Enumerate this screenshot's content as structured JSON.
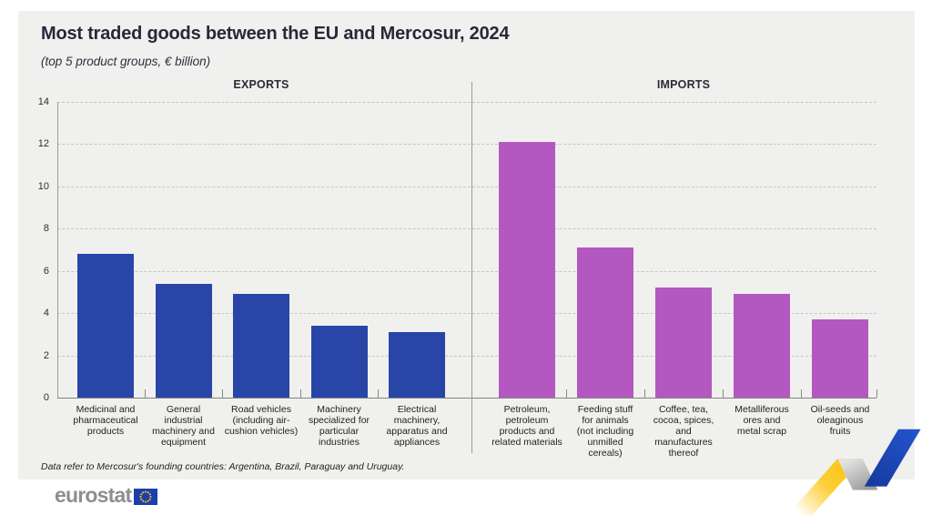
{
  "chart_data": {
    "type": "bar",
    "title": "Most traded goods between the EU and Mercosur, 2024",
    "subtitle": "(top 5 product groups, € billion)",
    "unit": "€ billion",
    "ylim": [
      0,
      14
    ],
    "yticks": [
      0,
      2,
      4,
      6,
      8,
      10,
      12,
      14
    ],
    "grid": "horizontal-dashed",
    "legend_position": "none",
    "panels": [
      {
        "label": "EXPORTS",
        "bar_color": "#2845a7",
        "categories": [
          "Medicinal and pharmaceutical products",
          "General industrial machinery and equipment",
          "Road vehicles (including air-cushion vehicles)",
          "Machinery specialized for particular industries",
          "Electrical machinery, apparatus and appliances"
        ],
        "category_lines": [
          [
            "Medicinal and",
            "pharmaceutical",
            "products"
          ],
          [
            "General",
            "industrial",
            "machinery and",
            "equipment"
          ],
          [
            "Road vehicles",
            "(including air-",
            "cushion vehicles)"
          ],
          [
            "Machinery",
            "specialized for",
            "particular",
            "industries"
          ],
          [
            "Electrical",
            "machinery,",
            "apparatus and",
            "appliances"
          ]
        ],
        "values": [
          6.8,
          5.4,
          4.9,
          3.4,
          3.1
        ]
      },
      {
        "label": "IMPORTS",
        "bar_color": "#b458c1",
        "categories": [
          "Petroleum, petroleum products and related materials",
          "Feeding stuff for animals (not including unmilled cereals)",
          "Coffee, tea, cocoa, spices, and manufactures thereof",
          "Metalliferous ores and metal scrap",
          "Oil-seeds and oleaginous fruits"
        ],
        "category_lines": [
          [
            "Petroleum,",
            "petroleum",
            "products and",
            "related materials"
          ],
          [
            "Feeding stuff",
            "for animals",
            "(not including",
            "unmilled",
            "cereals)"
          ],
          [
            "Coffee, tea,",
            "cocoa, spices,",
            "and",
            "manufactures",
            "thereof"
          ],
          [
            "Metalliferous",
            "ores and",
            "metal scrap"
          ],
          [
            "Oil-seeds and",
            "oleaginous",
            "fruits"
          ]
        ],
        "values": [
          12.1,
          7.1,
          5.2,
          4.9,
          3.7
        ]
      }
    ]
  },
  "footnote": "Data refer to Mercosur's founding countries: Argentina, Brazil, Paraguay and Uruguay.",
  "logo": {
    "text": "eurostat"
  },
  "colors": {
    "card_bg": "#f0f0ee",
    "export_bar": "#2845a7",
    "import_bar": "#b458c1",
    "title_text": "#28283a",
    "ribbon_yellow": "#fdc613",
    "ribbon_blue": "#2353cb",
    "flag_blue": "#1c3fae",
    "flag_stars": "#ffcc00"
  }
}
